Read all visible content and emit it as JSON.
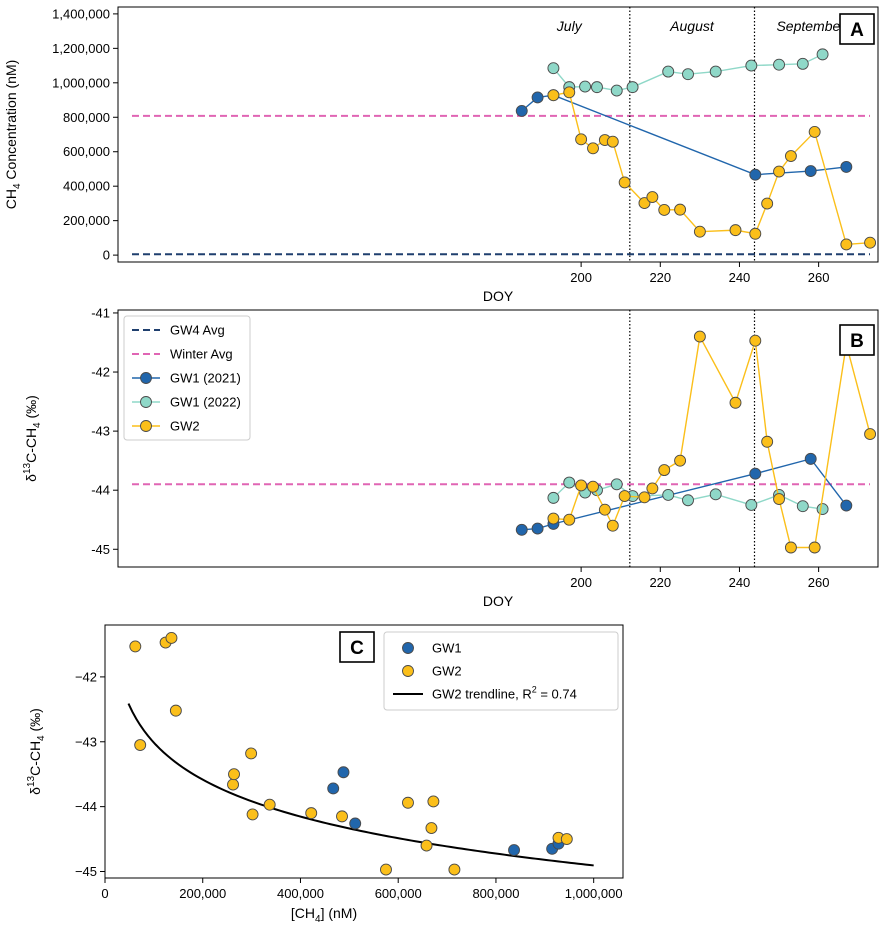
{
  "colors": {
    "gw1_2021": "#2166ac",
    "gw1_2022": "#8fd8c8",
    "gw2": "#fbbf1a",
    "gw4_avg": "#1f3f6e",
    "winter_avg": "#e065b4",
    "trend": "#000000"
  },
  "chart_data": [
    {
      "panel": "A",
      "type": "line",
      "xlabel": "DOY",
      "ylabel": "CH4 Concentration (nM)",
      "ylabel_main": "CH",
      "ylabel_sub": "4",
      "ylabel_rest": " Concentration (nM)",
      "xlim": [
        83,
        275
      ],
      "ylim": [
        -40000,
        1440000
      ],
      "xticks": [
        200,
        220,
        240,
        260
      ],
      "yticks": [
        0,
        200000,
        400000,
        600000,
        800000,
        1000000,
        1200000,
        1400000
      ],
      "ytick_labels": [
        "0",
        "200,000",
        "400,000",
        "600,000",
        "800,000",
        "1,000,000",
        "1,200,000",
        "1,400,000"
      ],
      "month_labels": [
        "July",
        "August",
        "September"
      ],
      "month_x": [
        197,
        228,
        258
      ],
      "month_dividers": [
        212.3,
        243.8
      ],
      "hlines": [
        {
          "name": "GW4 Avg",
          "y": 5000,
          "color_key": "gw4_avg"
        },
        {
          "name": "Winter Avg",
          "y": 808000,
          "color_key": "winter_avg"
        }
      ],
      "series": [
        {
          "name": "GW1 (2021)",
          "color_key": "gw1_2021",
          "x": [
            185,
            189,
            193,
            244,
            258,
            267
          ],
          "y": [
            837000,
            915000,
            928000,
            467000,
            488000,
            512000
          ]
        },
        {
          "name": "GW1 (2022)",
          "color_key": "gw1_2022",
          "x": [
            193,
            197,
            201,
            204,
            209,
            213,
            222,
            227,
            234,
            243,
            250,
            256,
            261
          ],
          "y": [
            1085000,
            975000,
            978000,
            975000,
            955000,
            975000,
            1065000,
            1050000,
            1065000,
            1100000,
            1105000,
            1110000,
            1165000
          ]
        },
        {
          "name": "GW2",
          "color_key": "gw2",
          "x": [
            193,
            197,
            200,
            203,
            206,
            208,
            211,
            216,
            218,
            221,
            225,
            230,
            239,
            244,
            247,
            250,
            253,
            259,
            267,
            273
          ],
          "y": [
            928000,
            945000,
            672000,
            620000,
            668000,
            658000,
            422000,
            302000,
            337000,
            262000,
            264000,
            136000,
            145000,
            124000,
            299000,
            485000,
            575000,
            715000,
            62000,
            72000
          ]
        }
      ],
      "panel_letter": "A"
    },
    {
      "panel": "B",
      "type": "line",
      "xlabel": "DOY",
      "ylabel": "δ13C-CH4 (‰)",
      "ylabel_main": "δ",
      "ylabel_sup": "13",
      "ylabel_mid": "C-CH",
      "ylabel_sub": "4",
      "ylabel_rest": " (‰)",
      "xlim": [
        83,
        275
      ],
      "ylim": [
        -45.3,
        -40.95
      ],
      "xticks": [
        200,
        220,
        240,
        260
      ],
      "yticks": [
        -45,
        -44,
        -43,
        -42,
        -41
      ],
      "ytick_labels": [
        "-45",
        "-44",
        "-43",
        "-42",
        "-41"
      ],
      "month_dividers": [
        212.3,
        243.8
      ],
      "hlines": [
        {
          "name": "Winter Avg",
          "y": -43.9,
          "color_key": "winter_avg"
        }
      ],
      "series": [
        {
          "name": "GW1 (2021)",
          "color_key": "gw1_2021",
          "x": [
            185,
            189,
            193,
            244,
            258,
            267
          ],
          "y": [
            -44.67,
            -44.65,
            -44.57,
            -43.72,
            -43.47,
            -44.26
          ]
        },
        {
          "name": "GW1 (2022)",
          "color_key": "gw1_2022",
          "x": [
            193,
            197,
            201,
            204,
            209,
            213,
            222,
            227,
            234,
            243,
            250,
            256,
            261
          ],
          "y": [
            -44.13,
            -43.87,
            -44.04,
            -44.0,
            -43.9,
            -44.1,
            -44.08,
            -44.17,
            -44.07,
            -44.25,
            -44.08,
            -44.27,
            -44.32
          ]
        },
        {
          "name": "GW2",
          "color_key": "gw2",
          "x": [
            193,
            197,
            200,
            203,
            206,
            208,
            211,
            216,
            218,
            221,
            225,
            230,
            239,
            244,
            247,
            250,
            253,
            259,
            267,
            273
          ],
          "y": [
            -44.48,
            -44.5,
            -43.92,
            -43.94,
            -44.33,
            -44.6,
            -44.1,
            -44.12,
            -43.97,
            -43.66,
            -43.5,
            -41.4,
            -42.52,
            -41.47,
            -43.18,
            -44.15,
            -44.97,
            -44.97,
            -41.53,
            -43.05
          ]
        }
      ],
      "legend": [
        {
          "label": "GW4 Avg",
          "kind": "dash",
          "color_key": "gw4_avg"
        },
        {
          "label": "Winter Avg",
          "kind": "dash",
          "color_key": "winter_avg"
        },
        {
          "label": "GW1 (2021)",
          "kind": "line-marker",
          "color_key": "gw1_2021"
        },
        {
          "label": "GW1 (2022)",
          "kind": "line-marker",
          "color_key": "gw1_2022"
        },
        {
          "label": "GW2",
          "kind": "line-marker",
          "color_key": "gw2"
        }
      ],
      "panel_letter": "B"
    },
    {
      "panel": "C",
      "type": "scatter",
      "xlabel": "[CH4] (nM)",
      "xlabel_main": "[CH",
      "xlabel_sub": "4",
      "xlabel_rest": "] (nM)",
      "ylabel": "δ13C-CH4 (‰)",
      "xlim": [
        0,
        1060000
      ],
      "ylim": [
        -45.1,
        -41.2
      ],
      "xticks": [
        0,
        200000,
        400000,
        600000,
        800000,
        1000000
      ],
      "xtick_labels": [
        "0",
        "200,000",
        "400,000",
        "600,000",
        "800,000",
        "1,000,000"
      ],
      "yticks": [
        -45,
        -44,
        -43,
        -42
      ],
      "ytick_labels": [
        "−45",
        "−44",
        "−43",
        "−42"
      ],
      "series": [
        {
          "name": "GW1",
          "color_key": "gw1_2021",
          "x": [
            837000,
            915000,
            928000,
            467000,
            488000,
            512000
          ],
          "y": [
            -44.67,
            -44.65,
            -44.57,
            -43.72,
            -43.47,
            -44.26
          ]
        },
        {
          "name": "GW2",
          "color_key": "gw2",
          "x": [
            62000,
            72000,
            124000,
            136000,
            145000,
            262000,
            264000,
            299000,
            302000,
            337000,
            422000,
            485000,
            575000,
            620000,
            658000,
            668000,
            672000,
            715000,
            928000,
            945000
          ],
          "y": [
            -41.53,
            -43.05,
            -41.47,
            -41.4,
            -42.52,
            -43.66,
            -43.5,
            -43.18,
            -44.12,
            -43.97,
            -44.1,
            -44.15,
            -44.97,
            -43.94,
            -44.6,
            -44.33,
            -43.92,
            -44.97,
            -44.48,
            -44.5
          ]
        }
      ],
      "trend": {
        "name": "GW2 trendline",
        "r2": "0.74",
        "a": -33.55,
        "b": -0.822,
        "xmin": 48000,
        "xmax": 1000000,
        "color_key": "trend"
      },
      "legend": [
        {
          "label": "GW1",
          "kind": "marker",
          "color_key": "gw1_2021"
        },
        {
          "label": "GW2",
          "kind": "marker",
          "color_key": "gw2"
        },
        {
          "label": "GW2 trendline, R",
          "sup": "2",
          "rest": " = 0.74",
          "kind": "line",
          "color_key": "trend"
        }
      ],
      "panel_letter": "C"
    }
  ]
}
